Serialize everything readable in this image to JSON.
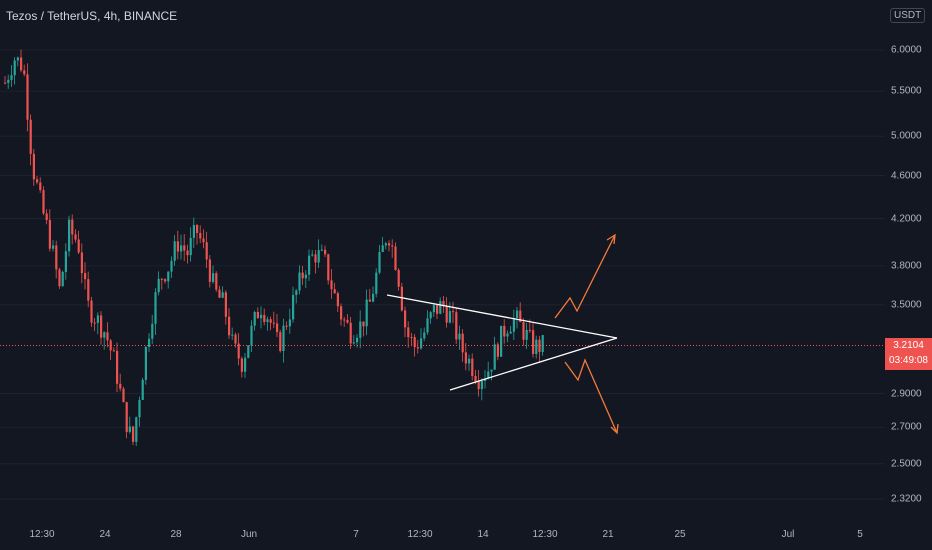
{
  "header": {
    "title": "Tezos / TetherUS, 4h, BINANCE"
  },
  "currency": "USDT",
  "last_price": {
    "value": "3.2104",
    "countdown": "03:49:08",
    "color": "#ef5350"
  },
  "colors": {
    "up": "#26a69a",
    "down": "#ef5350",
    "background": "#131722",
    "grid": "#1e2230",
    "pattern": "#ffffff",
    "projection": "#f5793b"
  },
  "chart_data": {
    "type": "candlestick",
    "title": "Tezos / TetherUS, 4h, BINANCE",
    "scale": "log",
    "ylim": [
      2.2,
      6.6
    ],
    "y_ticks": [
      "6.0000",
      "5.5000",
      "5.0000",
      "4.6000",
      "4.2000",
      "3.8000",
      "3.5000",
      "2.9000",
      "2.7000",
      "2.5000",
      "2.3200"
    ],
    "x_ticks": [
      "12:30",
      "24",
      "28",
      "Jun",
      "7",
      "12:30",
      "14",
      "12:30",
      "21",
      "25",
      "Jul",
      "5"
    ],
    "price_path": [
      5.6,
      5.9,
      5.8,
      4.7,
      4.3,
      4.0,
      3.6,
      4.1,
      4.0,
      3.5,
      3.4,
      3.3,
      3.1,
      2.8,
      2.6,
      3.0,
      3.4,
      3.7,
      3.8,
      4.0,
      3.9,
      4.1,
      3.9,
      3.6,
      3.5,
      3.2,
      3.1,
      3.3,
      3.5,
      3.4,
      3.2,
      3.4,
      3.6,
      3.8,
      3.9,
      3.85,
      3.6,
      3.4,
      3.3,
      3.35,
      3.5,
      3.8,
      4.1,
      3.8,
      3.3,
      3.2,
      3.3,
      3.45,
      3.5,
      3.4,
      3.2,
      3.1,
      3.0,
      3.05,
      3.2,
      3.35,
      3.4,
      3.3,
      3.2,
      3.21
    ],
    "last_price": 3.2104,
    "pattern": "symmetrical triangle",
    "scenarios": [
      "breakout up",
      "breakdown"
    ]
  }
}
